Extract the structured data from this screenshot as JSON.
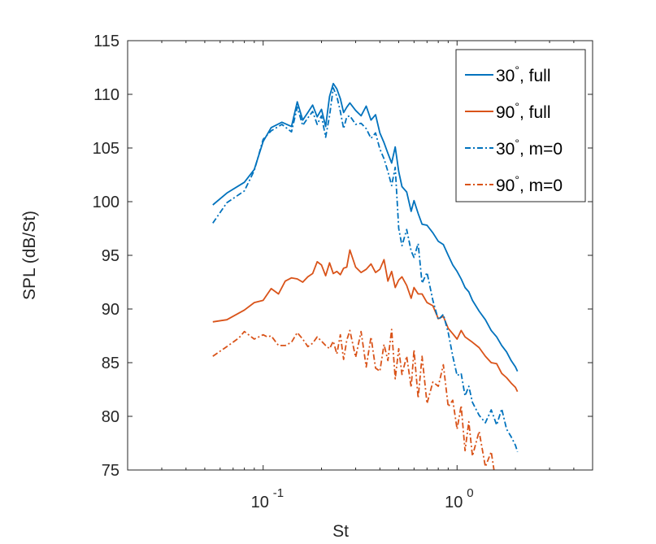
{
  "chart_data": {
    "type": "line",
    "xscale": "log",
    "xlabel": "St",
    "ylabel": "SPL (dB/St)",
    "xlim": [
      0.02,
      5
    ],
    "ylim": [
      75,
      115
    ],
    "xticks": [
      {
        "value": 0.1,
        "base": "10",
        "exp": "-1"
      },
      {
        "value": 1,
        "base": "10",
        "exp": "0"
      }
    ],
    "yticks": [
      75,
      80,
      85,
      90,
      95,
      100,
      105,
      110,
      115
    ],
    "legend_location": "top-right",
    "colors": {
      "blue": "#0072BD",
      "orange": "#D95319",
      "axis": "#262626"
    },
    "series": [
      {
        "name": "30°, full",
        "label_num": "30",
        "label_deg": "°",
        "label_rest": ", full",
        "color": "#0072BD",
        "dash": "solid",
        "x": [
          0.055,
          0.065,
          0.08,
          0.09,
          0.1,
          0.11,
          0.125,
          0.14,
          0.15,
          0.16,
          0.17,
          0.18,
          0.19,
          0.2,
          0.21,
          0.22,
          0.23,
          0.24,
          0.25,
          0.26,
          0.27,
          0.28,
          0.3,
          0.32,
          0.34,
          0.36,
          0.38,
          0.4,
          0.42,
          0.44,
          0.46,
          0.48,
          0.5,
          0.52,
          0.55,
          0.58,
          0.6,
          0.63,
          0.66,
          0.7,
          0.75,
          0.8,
          0.85,
          0.9,
          0.95,
          1.0,
          1.05,
          1.1,
          1.15,
          1.2,
          1.3,
          1.4,
          1.5,
          1.6,
          1.7,
          1.8,
          1.9,
          2.0,
          2.05
        ],
        "y": [
          99.7,
          100.8,
          101.8,
          103.0,
          105.6,
          106.9,
          107.4,
          107.0,
          109.3,
          107.6,
          108.3,
          109.0,
          107.9,
          108.6,
          107.0,
          109.8,
          111.0,
          110.5,
          109.6,
          108.3,
          108.8,
          109.2,
          108.5,
          108.0,
          108.9,
          107.6,
          108.1,
          106.4,
          105.5,
          104.5,
          103.6,
          105.1,
          102.8,
          101.4,
          100.9,
          99.1,
          100.1,
          98.9,
          97.9,
          97.8,
          97.1,
          96.3,
          96.0,
          95.0,
          94.1,
          93.5,
          92.8,
          92.0,
          91.6,
          90.8,
          89.8,
          89.0,
          88.0,
          87.4,
          86.6,
          86.0,
          85.2,
          84.6,
          84.2
        ]
      },
      {
        "name": "90°, full",
        "label_num": "90",
        "label_deg": "°",
        "label_rest": ", full",
        "color": "#D95319",
        "dash": "solid",
        "x": [
          0.055,
          0.065,
          0.08,
          0.09,
          0.1,
          0.11,
          0.12,
          0.13,
          0.14,
          0.15,
          0.16,
          0.17,
          0.18,
          0.19,
          0.2,
          0.21,
          0.22,
          0.23,
          0.24,
          0.25,
          0.26,
          0.27,
          0.28,
          0.3,
          0.32,
          0.34,
          0.36,
          0.38,
          0.4,
          0.42,
          0.44,
          0.46,
          0.48,
          0.5,
          0.52,
          0.55,
          0.58,
          0.6,
          0.63,
          0.66,
          0.7,
          0.75,
          0.8,
          0.85,
          0.9,
          0.95,
          1.0,
          1.05,
          1.1,
          1.2,
          1.3,
          1.4,
          1.5,
          1.6,
          1.7,
          1.8,
          1.9,
          2.0,
          2.05
        ],
        "y": [
          88.8,
          89.0,
          89.9,
          90.6,
          90.8,
          91.9,
          91.4,
          92.6,
          92.9,
          92.8,
          92.5,
          93.0,
          93.3,
          94.4,
          94.1,
          93.1,
          94.3,
          93.3,
          93.5,
          93.2,
          93.8,
          93.9,
          95.5,
          93.9,
          93.4,
          93.7,
          94.2,
          93.4,
          93.7,
          94.6,
          92.6,
          93.5,
          92.0,
          92.7,
          93.0,
          92.2,
          91.0,
          92.0,
          91.4,
          91.4,
          90.6,
          90.3,
          89.1,
          89.3,
          88.2,
          87.7,
          87.2,
          88.0,
          87.4,
          86.9,
          86.4,
          85.6,
          85.0,
          84.9,
          84.0,
          83.6,
          83.1,
          82.7,
          82.3
        ]
      },
      {
        "name": "30°, m=0",
        "label_num": "30",
        "label_deg": "°",
        "label_rest": ", m=0",
        "color": "#0072BD",
        "dash": "dashdot",
        "x": [
          0.055,
          0.065,
          0.08,
          0.09,
          0.1,
          0.11,
          0.125,
          0.14,
          0.15,
          0.16,
          0.17,
          0.18,
          0.19,
          0.2,
          0.21,
          0.22,
          0.23,
          0.24,
          0.25,
          0.26,
          0.27,
          0.28,
          0.3,
          0.32,
          0.34,
          0.36,
          0.38,
          0.4,
          0.42,
          0.44,
          0.46,
          0.48,
          0.5,
          0.52,
          0.55,
          0.58,
          0.6,
          0.63,
          0.66,
          0.7,
          0.75,
          0.8,
          0.85,
          0.9,
          0.95,
          1.0,
          1.05,
          1.1,
          1.15,
          1.2,
          1.3,
          1.4,
          1.5,
          1.6,
          1.7,
          1.8,
          1.9,
          2.0,
          2.05
        ],
        "y": [
          98.0,
          99.9,
          101.0,
          102.9,
          105.8,
          106.6,
          107.2,
          106.5,
          108.8,
          107.1,
          107.8,
          108.4,
          107.2,
          108.0,
          106.0,
          108.0,
          110.6,
          109.8,
          108.4,
          106.8,
          107.9,
          108.0,
          107.2,
          107.3,
          106.8,
          105.9,
          106.4,
          104.9,
          104.0,
          102.8,
          101.5,
          103.2,
          97.5,
          95.9,
          97.4,
          95.4,
          94.8,
          96.1,
          92.4,
          93.4,
          90.8,
          89.0,
          89.5,
          87.8,
          85.6,
          83.8,
          84.0,
          81.9,
          82.8,
          81.3,
          80.1,
          79.4,
          80.6,
          79.2,
          80.7,
          78.8,
          78.1,
          77.3,
          76.7
        ]
      },
      {
        "name": "90°, m=0",
        "label_num": "90",
        "label_deg": "°",
        "label_rest": ", m=0",
        "color": "#D95319",
        "dash": "dashdot",
        "x": [
          0.055,
          0.065,
          0.075,
          0.08,
          0.09,
          0.1,
          0.105,
          0.11,
          0.12,
          0.13,
          0.14,
          0.15,
          0.16,
          0.17,
          0.18,
          0.19,
          0.2,
          0.21,
          0.22,
          0.23,
          0.24,
          0.25,
          0.26,
          0.27,
          0.28,
          0.3,
          0.32,
          0.34,
          0.36,
          0.38,
          0.4,
          0.42,
          0.44,
          0.46,
          0.48,
          0.5,
          0.52,
          0.55,
          0.58,
          0.6,
          0.63,
          0.66,
          0.7,
          0.75,
          0.8,
          0.85,
          0.9,
          0.95,
          1.0,
          1.05,
          1.1,
          1.15,
          1.2,
          1.3,
          1.4,
          1.5,
          1.55
        ],
        "y": [
          85.6,
          86.5,
          87.3,
          87.9,
          87.2,
          87.6,
          87.4,
          87.5,
          86.6,
          86.6,
          86.9,
          87.8,
          87.2,
          86.5,
          86.8,
          87.4,
          87.0,
          86.6,
          86.3,
          87.0,
          85.8,
          87.6,
          85.3,
          87.1,
          88.0,
          85.5,
          87.9,
          84.6,
          87.4,
          84.5,
          84.2,
          86.7,
          85.2,
          88.1,
          83.5,
          86.3,
          83.9,
          85.6,
          82.7,
          86.2,
          81.7,
          85.6,
          81.2,
          83.2,
          82.8,
          84.8,
          80.9,
          81.5,
          78.8,
          81.0,
          76.8,
          79.5,
          76.3,
          78.6,
          75.3,
          76.7,
          75.0
        ]
      }
    ]
  }
}
